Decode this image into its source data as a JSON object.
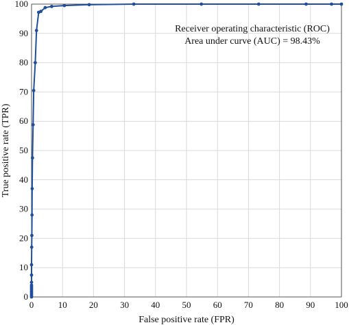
{
  "chart_data": {
    "type": "line",
    "title": "",
    "xlabel": "False positive  rate (FPR)",
    "ylabel": "True positive  rate (TPR)",
    "xlim": [
      0,
      100
    ],
    "ylim": [
      0,
      100
    ],
    "x_ticks": [
      "0",
      "10",
      "20",
      "30",
      "40",
      "50",
      "60",
      "70",
      "80",
      "90",
      "100"
    ],
    "y_ticks": [
      "0",
      "10",
      "20",
      "30",
      "40",
      "50",
      "60",
      "70",
      "80",
      "90",
      "100"
    ],
    "grid": true,
    "line_color": "#1f4e9a",
    "annotations": [
      "Receiver operating characteristic (ROC)",
      "Area under curve (AUC) = 98.43%"
    ],
    "series": [
      {
        "x": [
          0,
          0,
          0,
          0,
          0,
          0,
          0,
          0,
          0,
          0,
          0,
          0,
          0.05,
          0.1,
          0.15,
          0.2,
          0.3,
          0.5,
          0.7,
          1.2,
          1.6,
          2.3,
          3.0,
          4.4,
          6.5,
          10.6,
          18.6,
          33.0,
          54.8,
          73.3,
          88.6,
          96.8,
          100
        ],
        "y": [
          0,
          0.5,
          1,
          1.5,
          2,
          2.5,
          3,
          3.5,
          4,
          5,
          7.5,
          11,
          17,
          21,
          28,
          37,
          47.5,
          58.8,
          70.5,
          80,
          91,
          97.2,
          97.5,
          98.8,
          99.2,
          99.5,
          99.8,
          100,
          100,
          100,
          100,
          100,
          100
        ]
      }
    ]
  }
}
